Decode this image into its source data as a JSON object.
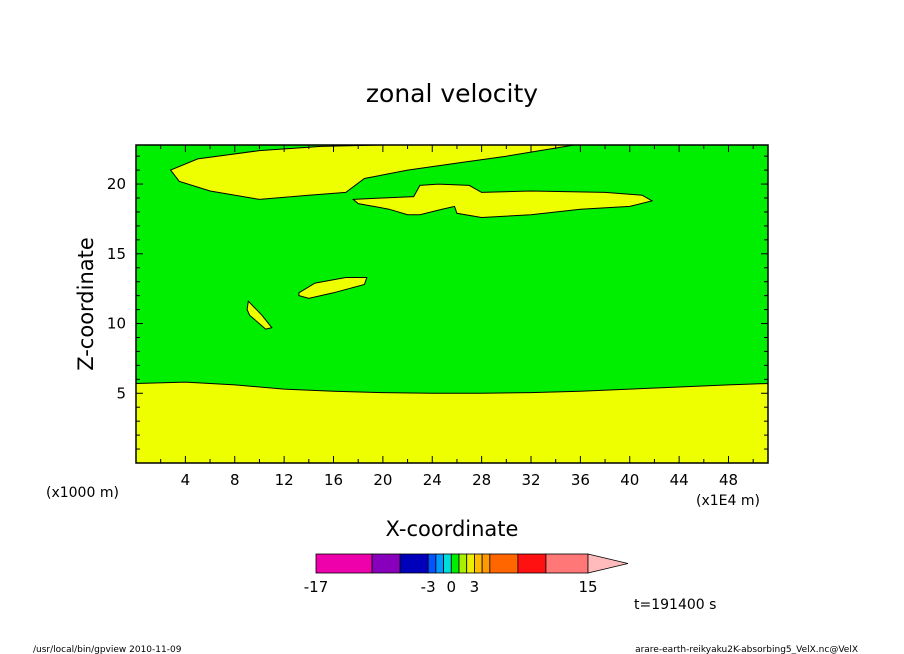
{
  "chart_data": {
    "type": "heatmap",
    "title": "zonal velocity",
    "xlabel": "X-coordinate",
    "ylabel": "Z-coordinate",
    "y_unit_label": "(x1000 m)",
    "x_unit_label": "(x1E4 m)",
    "xlim": [
      0,
      51.2
    ],
    "ylim": [
      0,
      22.8
    ],
    "x_ticks": [
      "4",
      "8",
      "12",
      "16",
      "20",
      "24",
      "28",
      "32",
      "36",
      "40",
      "44",
      "48"
    ],
    "y_ticks": [
      "5",
      "10",
      "15",
      "20"
    ],
    "time_label": "t=191400 s",
    "background_color": "#00ee00",
    "regions": [
      {
        "name": "",
        "color": "#eeff00",
        "points": [
          [
            0,
            5.7
          ],
          [
            4,
            5.8
          ],
          [
            8,
            5.6
          ],
          [
            12,
            5.3
          ],
          [
            16,
            5.15
          ],
          [
            20,
            5.05
          ],
          [
            24,
            5.0
          ],
          [
            28,
            5.0
          ],
          [
            32,
            5.05
          ],
          [
            36,
            5.15
          ],
          [
            40,
            5.3
          ],
          [
            44,
            5.45
          ],
          [
            48,
            5.6
          ],
          [
            51.2,
            5.7
          ],
          [
            51.2,
            0
          ],
          [
            0,
            0
          ]
        ]
      },
      {
        "name": "",
        "color": "#eeff00",
        "points": [
          [
            2.8,
            21.0
          ],
          [
            5,
            21.8
          ],
          [
            10,
            22.4
          ],
          [
            15,
            22.7
          ],
          [
            20,
            22.8
          ],
          [
            35.5,
            22.8
          ],
          [
            30,
            22.0
          ],
          [
            26,
            21.5
          ],
          [
            22,
            21.0
          ],
          [
            18.5,
            20.4
          ],
          [
            17,
            19.4
          ],
          [
            14,
            19.2
          ],
          [
            10,
            18.9
          ],
          [
            6,
            19.5
          ],
          [
            3.5,
            20.2
          ]
        ]
      },
      {
        "name": "",
        "color": "#eeff00",
        "points": [
          [
            17.6,
            18.9
          ],
          [
            20,
            19.0
          ],
          [
            22.5,
            19.1
          ],
          [
            23,
            19.9
          ],
          [
            24.5,
            20.0
          ],
          [
            27,
            19.9
          ],
          [
            28,
            19.4
          ],
          [
            32,
            19.5
          ],
          [
            38,
            19.4
          ],
          [
            41,
            19.2
          ],
          [
            41.8,
            18.8
          ],
          [
            40,
            18.4
          ],
          [
            36,
            18.2
          ],
          [
            32,
            17.8
          ],
          [
            28,
            17.6
          ],
          [
            26,
            17.9
          ],
          [
            25.8,
            18.4
          ],
          [
            24.8,
            18.2
          ],
          [
            23,
            17.8
          ],
          [
            22,
            17.8
          ],
          [
            20.5,
            18.2
          ],
          [
            18,
            18.6
          ]
        ]
      },
      {
        "name": "",
        "color": "#eeff00",
        "points": [
          [
            13.2,
            12.2
          ],
          [
            14.5,
            12.9
          ],
          [
            17,
            13.3
          ],
          [
            18.7,
            13.3
          ],
          [
            18.5,
            12.8
          ],
          [
            16,
            12.2
          ],
          [
            14,
            11.8
          ],
          [
            13.2,
            12.0
          ]
        ]
      },
      {
        "name": "",
        "color": "#eeff00",
        "points": [
          [
            9.1,
            11.6
          ],
          [
            10.2,
            10.6
          ],
          [
            11.0,
            9.7
          ],
          [
            10.5,
            9.6
          ],
          [
            9.2,
            10.6
          ],
          [
            9.0,
            11.0
          ]
        ]
      }
    ],
    "colorbar": {
      "colors": [
        "#ee00aa",
        "#8800bb",
        "#0000bb",
        "#0055ff",
        "#0099ff",
        "#00dddd",
        "#00ee00",
        "#aaee00",
        "#eeee00",
        "#ffbb00",
        "#ff9900",
        "#ff6600",
        "#ff1111",
        "#ff7777"
      ],
      "weights": [
        4,
        2,
        2,
        0.55,
        0.55,
        0.55,
        0.55,
        0.55,
        0.55,
        0.55,
        0.55,
        2,
        2,
        3
      ],
      "extend_color": "#ffbbbb",
      "tick_labels": [
        {
          "text": "-17",
          "value": -17
        },
        {
          "text": "-3",
          "value": -3
        },
        {
          "text": "0",
          "value": 0
        },
        {
          "text": "3",
          "value": 3
        },
        {
          "text": "15",
          "value": 15
        }
      ]
    }
  },
  "footer": {
    "left": "/usr/local/bin/gpview  2010-11-09",
    "right": "arare-earth-reikyaku2K-absorbing5_VelX.nc@VelX"
  }
}
